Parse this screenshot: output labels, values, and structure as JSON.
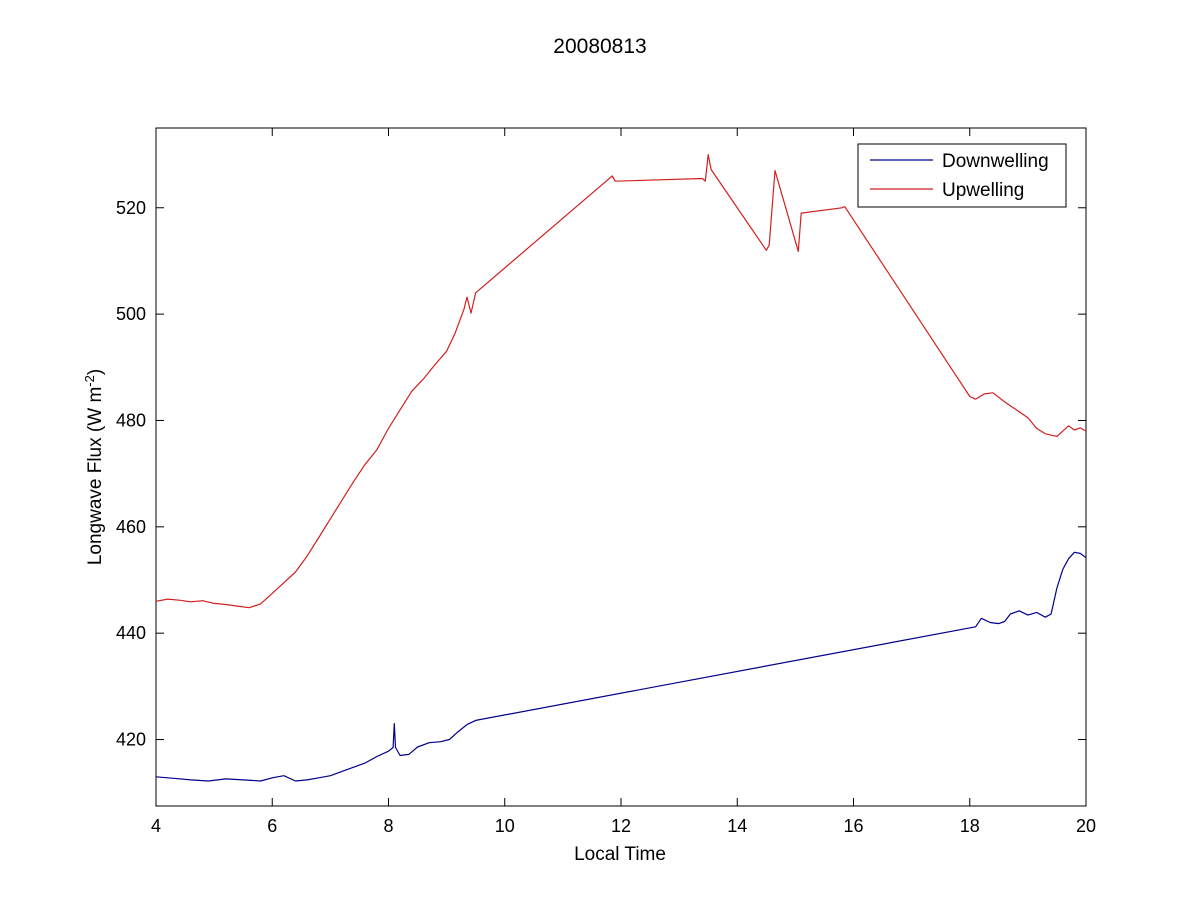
{
  "chart_data": {
    "type": "line",
    "title": "20080813",
    "xlabel": "Local Time",
    "ylabel_main": "Longwave Flux (W m",
    "ylabel_sup": "-2",
    "ylabel_close": ")",
    "xlim": [
      4,
      20
    ],
    "ylim": [
      407.5,
      535
    ],
    "xticks": [
      4,
      6,
      8,
      10,
      12,
      14,
      16,
      18,
      20
    ],
    "yticks": [
      420,
      440,
      460,
      480,
      500,
      520
    ],
    "legend_position": "top-right",
    "grid": false,
    "series": [
      {
        "name": "Downwelling",
        "color": "#00008b",
        "points": [
          [
            4.0,
            413.0
          ],
          [
            4.3,
            412.7
          ],
          [
            4.6,
            412.4
          ],
          [
            4.9,
            412.2
          ],
          [
            5.2,
            412.6
          ],
          [
            5.5,
            412.4
          ],
          [
            5.8,
            412.2
          ],
          [
            6.0,
            412.8
          ],
          [
            6.2,
            413.2
          ],
          [
            6.4,
            412.2
          ],
          [
            6.6,
            412.4
          ],
          [
            6.8,
            412.8
          ],
          [
            7.0,
            413.2
          ],
          [
            7.2,
            414.0
          ],
          [
            7.4,
            414.8
          ],
          [
            7.6,
            415.6
          ],
          [
            7.8,
            416.8
          ],
          [
            8.0,
            417.8
          ],
          [
            8.08,
            418.5
          ],
          [
            8.1,
            423.0
          ],
          [
            8.12,
            418.5
          ],
          [
            8.2,
            417.0
          ],
          [
            8.35,
            417.2
          ],
          [
            8.5,
            418.6
          ],
          [
            8.7,
            419.4
          ],
          [
            8.9,
            419.6
          ],
          [
            9.05,
            420.0
          ],
          [
            9.2,
            421.5
          ],
          [
            9.35,
            422.8
          ],
          [
            9.5,
            423.6
          ],
          [
            18.1,
            441.2
          ],
          [
            18.2,
            442.8
          ],
          [
            18.35,
            442.0
          ],
          [
            18.5,
            441.8
          ],
          [
            18.6,
            442.2
          ],
          [
            18.7,
            443.6
          ],
          [
            18.85,
            444.2
          ],
          [
            19.0,
            443.4
          ],
          [
            19.15,
            443.9
          ],
          [
            19.3,
            443.0
          ],
          [
            19.4,
            443.6
          ],
          [
            19.5,
            448.5
          ],
          [
            19.6,
            452.0
          ],
          [
            19.7,
            454.0
          ],
          [
            19.8,
            455.2
          ],
          [
            19.9,
            455.0
          ],
          [
            20.0,
            454.2
          ]
        ]
      },
      {
        "name": "Upwelling",
        "color": "#d21f1f",
        "points": [
          [
            4.0,
            446.0
          ],
          [
            4.2,
            446.4
          ],
          [
            4.4,
            446.2
          ],
          [
            4.6,
            445.9
          ],
          [
            4.8,
            446.1
          ],
          [
            5.0,
            445.6
          ],
          [
            5.2,
            445.4
          ],
          [
            5.4,
            445.1
          ],
          [
            5.6,
            444.8
          ],
          [
            5.8,
            445.5
          ],
          [
            6.0,
            447.5
          ],
          [
            6.2,
            449.5
          ],
          [
            6.4,
            451.5
          ],
          [
            6.6,
            454.5
          ],
          [
            6.8,
            458.0
          ],
          [
            7.0,
            461.5
          ],
          [
            7.2,
            465.0
          ],
          [
            7.4,
            468.5
          ],
          [
            7.6,
            471.8
          ],
          [
            7.8,
            474.5
          ],
          [
            8.0,
            478.5
          ],
          [
            8.2,
            482.0
          ],
          [
            8.4,
            485.5
          ],
          [
            8.6,
            487.8
          ],
          [
            8.8,
            490.5
          ],
          [
            9.0,
            493.0
          ],
          [
            9.15,
            496.5
          ],
          [
            9.3,
            501.0
          ],
          [
            9.35,
            503.2
          ],
          [
            9.42,
            500.2
          ],
          [
            9.5,
            504.0
          ],
          [
            11.85,
            526.0
          ],
          [
            11.9,
            525.0
          ],
          [
            13.4,
            525.5
          ],
          [
            13.45,
            525.0
          ],
          [
            13.5,
            530.0
          ],
          [
            13.55,
            527.2
          ],
          [
            14.5,
            512.0
          ],
          [
            14.55,
            513.0
          ],
          [
            14.65,
            527.0
          ],
          [
            15.05,
            511.8
          ],
          [
            15.1,
            519.0
          ],
          [
            15.8,
            520.0
          ],
          [
            15.85,
            520.2
          ],
          [
            18.0,
            484.5
          ],
          [
            18.1,
            484.0
          ],
          [
            18.25,
            485.0
          ],
          [
            18.4,
            485.2
          ],
          [
            18.6,
            483.5
          ],
          [
            18.8,
            482.0
          ],
          [
            19.0,
            480.5
          ],
          [
            19.15,
            478.5
          ],
          [
            19.3,
            477.5
          ],
          [
            19.5,
            477.0
          ],
          [
            19.7,
            479.0
          ],
          [
            19.8,
            478.2
          ],
          [
            19.9,
            478.6
          ],
          [
            20.0,
            478.0
          ]
        ]
      }
    ]
  }
}
